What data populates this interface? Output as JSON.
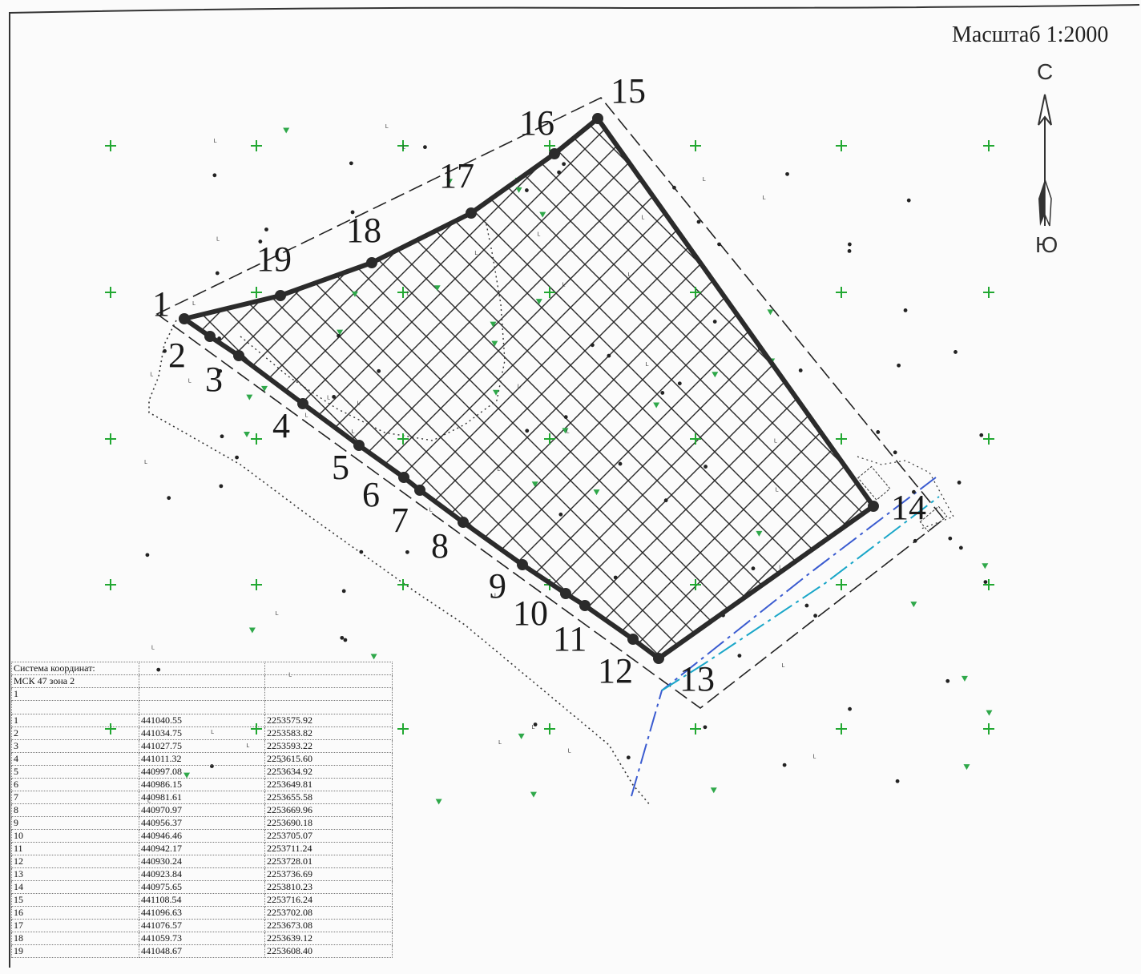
{
  "scale_label": "Масштаб 1:2000",
  "north_arrow": {
    "north": "С",
    "south": "Ю"
  },
  "point_labels": [
    "1",
    "2",
    "3",
    "4",
    "5",
    "6",
    "7",
    "8",
    "9",
    "10",
    "11",
    "12",
    "13",
    "14",
    "15",
    "16",
    "17",
    "18",
    "19"
  ],
  "coord_table": {
    "header": [
      "Система координат:",
      "МСК 47 зона 2",
      "1"
    ],
    "rows": [
      [
        "1",
        "441040.55",
        "2253575.92"
      ],
      [
        "2",
        "441034.75",
        "2253583.82"
      ],
      [
        "3",
        "441027.75",
        "2253593.22"
      ],
      [
        "4",
        "441011.32",
        "2253615.60"
      ],
      [
        "5",
        "440997.08",
        "2253634.92"
      ],
      [
        "6",
        "440986.15",
        "2253649.81"
      ],
      [
        "7",
        "440981.61",
        "2253655.58"
      ],
      [
        "8",
        "440970.97",
        "2253669.96"
      ],
      [
        "9",
        "440956.37",
        "2253690.18"
      ],
      [
        "10",
        "440946.46",
        "2253705.07"
      ],
      [
        "11",
        "440942.17",
        "2253711.24"
      ],
      [
        "12",
        "440930.24",
        "2253728.01"
      ],
      [
        "13",
        "440923.84",
        "2253736.69"
      ],
      [
        "14",
        "440975.65",
        "2253810.23"
      ],
      [
        "15",
        "441108.54",
        "2253716.24"
      ],
      [
        "16",
        "441096.63",
        "2253702.08"
      ],
      [
        "17",
        "441076.57",
        "2253673.08"
      ],
      [
        "18",
        "441059.73",
        "2253639.12"
      ],
      [
        "19",
        "441048.67",
        "2253608.40"
      ]
    ]
  },
  "colors": {
    "boundary": "#2b2b2b",
    "grid_cross": "#22a832",
    "utility_blue": "#3a5bd0",
    "utility_cyan": "#19a6c8",
    "tree_marker": "#2fa84a"
  }
}
